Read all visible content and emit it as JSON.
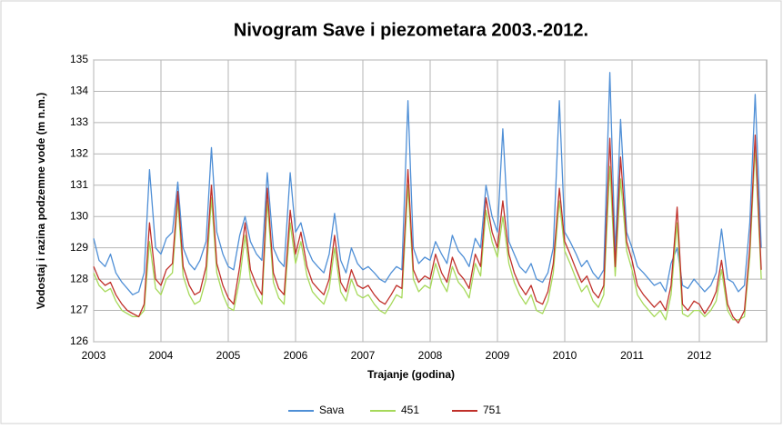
{
  "chart_data": {
    "type": "line",
    "title": "Nivogram Save i piezometara 2003.-2012.",
    "xlabel": "Trajanje  (godina)",
    "ylabel": "Vodostaj i razina podzemne vode (m n.m.)",
    "x": [
      2003.0,
      2003.08,
      2003.17,
      2003.25,
      2003.33,
      2003.42,
      2003.5,
      2003.58,
      2003.67,
      2003.75,
      2003.83,
      2003.92,
      2004.0,
      2004.08,
      2004.17,
      2004.25,
      2004.33,
      2004.42,
      2004.5,
      2004.58,
      2004.67,
      2004.75,
      2004.83,
      2004.92,
      2005.0,
      2005.08,
      2005.17,
      2005.25,
      2005.33,
      2005.42,
      2005.5,
      2005.58,
      2005.67,
      2005.75,
      2005.83,
      2005.92,
      2006.0,
      2006.08,
      2006.17,
      2006.25,
      2006.33,
      2006.42,
      2006.5,
      2006.58,
      2006.67,
      2006.75,
      2006.83,
      2006.92,
      2007.0,
      2007.08,
      2007.17,
      2007.25,
      2007.33,
      2007.42,
      2007.5,
      2007.58,
      2007.67,
      2007.75,
      2007.83,
      2007.92,
      2008.0,
      2008.08,
      2008.17,
      2008.25,
      2008.33,
      2008.42,
      2008.5,
      2008.58,
      2008.67,
      2008.75,
      2008.83,
      2008.92,
      2009.0,
      2009.08,
      2009.17,
      2009.25,
      2009.33,
      2009.42,
      2009.5,
      2009.58,
      2009.67,
      2009.75,
      2009.83,
      2009.92,
      2010.0,
      2010.08,
      2010.17,
      2010.25,
      2010.33,
      2010.42,
      2010.5,
      2010.58,
      2010.67,
      2010.75,
      2010.83,
      2010.92,
      2011.0,
      2011.08,
      2011.17,
      2011.25,
      2011.33,
      2011.42,
      2011.5,
      2011.58,
      2011.67,
      2011.75,
      2011.83,
      2011.92,
      2012.0,
      2012.08,
      2012.17,
      2012.25,
      2012.33,
      2012.42,
      2012.5,
      2012.58,
      2012.67,
      2012.75,
      2012.83,
      2012.92
    ],
    "series": [
      {
        "name": "Sava",
        "color": "#4f8fd6",
        "values": [
          129.3,
          128.6,
          128.4,
          128.8,
          128.2,
          127.9,
          127.7,
          127.5,
          127.6,
          128.2,
          131.5,
          129.0,
          128.8,
          129.3,
          129.5,
          131.1,
          129.0,
          128.5,
          128.3,
          128.6,
          129.2,
          132.2,
          129.5,
          128.8,
          128.4,
          128.3,
          129.4,
          130.0,
          129.2,
          128.8,
          128.6,
          131.4,
          129.0,
          128.6,
          128.4,
          131.4,
          129.5,
          129.8,
          129.0,
          128.6,
          128.4,
          128.2,
          128.8,
          130.1,
          128.6,
          128.2,
          129.0,
          128.5,
          128.3,
          128.4,
          128.2,
          128.0,
          127.9,
          128.2,
          128.4,
          128.3,
          133.7,
          129.0,
          128.5,
          128.7,
          128.6,
          129.2,
          128.8,
          128.5,
          129.4,
          128.9,
          128.7,
          128.4,
          129.3,
          129.0,
          131.0,
          130.0,
          129.5,
          132.8,
          129.2,
          128.8,
          128.4,
          128.2,
          128.5,
          128.0,
          127.9,
          128.2,
          129.0,
          133.7,
          129.5,
          129.2,
          128.8,
          128.4,
          128.6,
          128.2,
          128.0,
          128.3,
          134.6,
          128.8,
          133.1,
          129.5,
          129.0,
          128.4,
          128.2,
          128.0,
          127.8,
          127.9,
          127.6,
          128.5,
          129.0,
          127.8,
          127.7,
          128.0,
          127.8,
          127.6,
          127.8,
          128.2,
          129.6,
          128.0,
          127.9,
          127.6,
          127.8,
          129.8,
          133.9,
          129.0
        ]
      },
      {
        "name": "451",
        "color": "#a6d95a",
        "values": [
          128.2,
          127.8,
          127.6,
          127.7,
          127.3,
          127.0,
          126.9,
          126.8,
          126.8,
          127.0,
          129.2,
          127.7,
          127.5,
          128.0,
          128.2,
          130.5,
          128.1,
          127.5,
          127.2,
          127.3,
          128.0,
          130.6,
          128.2,
          127.5,
          127.1,
          127.0,
          128.0,
          129.4,
          128.0,
          127.5,
          127.2,
          130.5,
          127.9,
          127.4,
          127.2,
          129.8,
          128.5,
          129.2,
          128.1,
          127.6,
          127.4,
          127.2,
          127.7,
          129.0,
          127.6,
          127.3,
          128.0,
          127.5,
          127.4,
          127.5,
          127.2,
          127.0,
          126.9,
          127.2,
          127.5,
          127.4,
          131.0,
          128.0,
          127.6,
          127.8,
          127.7,
          128.5,
          127.9,
          127.6,
          128.4,
          127.9,
          127.7,
          127.4,
          128.5,
          128.1,
          130.2,
          129.2,
          128.7,
          130.0,
          128.5,
          127.9,
          127.5,
          127.2,
          127.5,
          127.0,
          126.9,
          127.3,
          128.2,
          130.5,
          128.9,
          128.5,
          128.0,
          127.6,
          127.8,
          127.3,
          127.1,
          127.5,
          131.6,
          128.1,
          131.2,
          128.9,
          128.3,
          127.5,
          127.2,
          127.0,
          126.8,
          127.0,
          126.7,
          127.5,
          129.8,
          126.9,
          126.8,
          127.0,
          127.0,
          126.8,
          127.0,
          127.3,
          128.3,
          127.0,
          126.7,
          126.7,
          126.8,
          128.7,
          132.2,
          128.0
        ]
      },
      {
        "name": "751",
        "color": "#c0302a",
        "values": [
          128.4,
          128.0,
          127.8,
          127.9,
          127.5,
          127.2,
          127.0,
          126.9,
          126.8,
          127.2,
          129.8,
          128.0,
          127.8,
          128.3,
          128.5,
          130.8,
          128.4,
          127.8,
          127.5,
          127.6,
          128.4,
          131.0,
          128.5,
          127.8,
          127.4,
          127.2,
          128.4,
          129.8,
          128.3,
          127.8,
          127.5,
          130.9,
          128.2,
          127.7,
          127.5,
          130.2,
          128.8,
          129.5,
          128.4,
          127.9,
          127.7,
          127.5,
          128.0,
          129.4,
          127.9,
          127.6,
          128.3,
          127.8,
          127.7,
          127.8,
          127.5,
          127.3,
          127.2,
          127.5,
          127.8,
          127.7,
          131.5,
          128.3,
          127.9,
          128.1,
          128.0,
          128.8,
          128.2,
          127.9,
          128.7,
          128.2,
          128.0,
          127.7,
          128.8,
          128.4,
          130.6,
          129.5,
          129.0,
          130.5,
          128.8,
          128.2,
          127.8,
          127.5,
          127.8,
          127.3,
          127.2,
          127.6,
          128.5,
          130.9,
          129.2,
          128.8,
          128.3,
          127.9,
          128.1,
          127.6,
          127.4,
          127.8,
          132.5,
          128.4,
          131.9,
          129.2,
          128.6,
          127.8,
          127.5,
          127.3,
          127.1,
          127.3,
          127.0,
          127.8,
          130.3,
          127.2,
          127.0,
          127.3,
          127.2,
          126.9,
          127.2,
          127.6,
          128.6,
          127.2,
          126.8,
          126.6,
          127.0,
          129.0,
          132.6,
          128.3
        ]
      }
    ],
    "xlim": [
      2003,
      2013
    ],
    "xticks": [
      2003,
      2004,
      2005,
      2006,
      2007,
      2008,
      2009,
      2010,
      2011,
      2012
    ],
    "ylim": [
      126,
      135
    ],
    "yticks": [
      126,
      127,
      128,
      129,
      130,
      131,
      132,
      133,
      134,
      135
    ],
    "grid": true,
    "legend": "bottom"
  }
}
